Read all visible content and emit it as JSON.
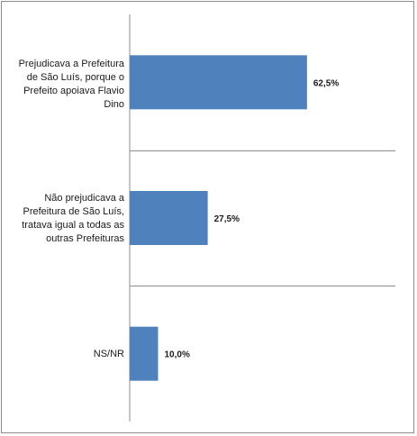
{
  "chart_data": {
    "type": "bar",
    "orientation": "horizontal",
    "categories": [
      "Prejudicava a Prefeitura de São Luís, porque o Prefeito apoiava Flavio Dino",
      "Não prejudicava a Prefeitura de São Luís, tratava igual a todas as outras Prefeituras",
      "NS/NR"
    ],
    "values": [
      62.5,
      27.5,
      10.0
    ],
    "data_labels": [
      "62,5%",
      "27,5%",
      "10,0%"
    ],
    "xlim": [
      0,
      100
    ],
    "grid": true,
    "bar_color": "#4f81bd",
    "grid_color": "#8c8c8c"
  }
}
